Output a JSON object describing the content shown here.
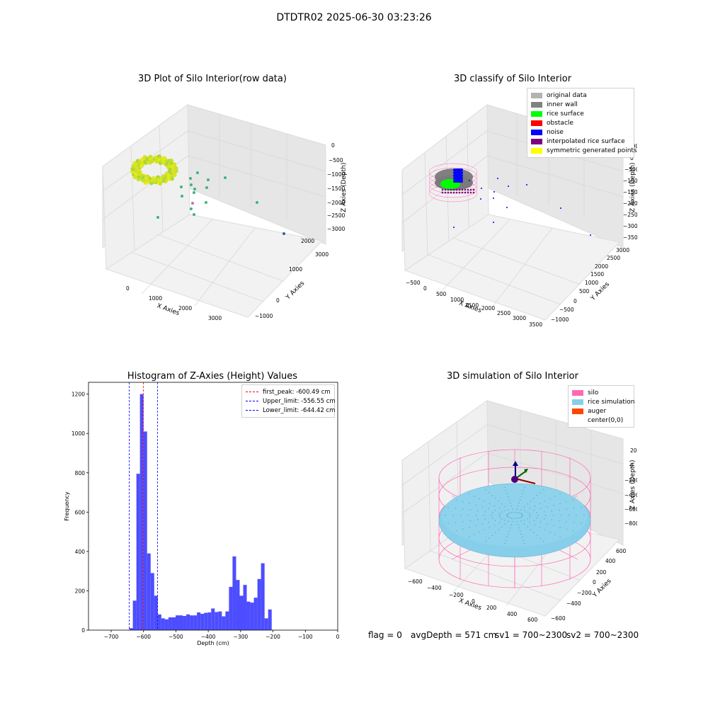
{
  "suptitle": "DTDTR02 2025-06-30 03:23:26",
  "panel_raw": {
    "title": "3D Plot of Silo Interior(row data)",
    "xlabel": "X Axies",
    "ylabel": "Y Axies",
    "zlabel": "Z Axies (Depth)",
    "x_ticks": [
      "0",
      "1000",
      "2000",
      "3000"
    ],
    "y_ticks": [
      "−1000",
      "0",
      "1000",
      "2000",
      "3000"
    ],
    "z_ticks": [
      "0",
      "−500",
      "−1000",
      "−1500",
      "−2000",
      "−2500",
      "−3000"
    ]
  },
  "panel_classify": {
    "title": "3D classify of Silo Interior",
    "xlabel": "X Axies",
    "ylabel": "Y Axies",
    "zlabel": "Z Axies (Depth)",
    "x_ticks": [
      "−500",
      "0",
      "500",
      "1000",
      "1500",
      "2000",
      "2500",
      "3000",
      "3500"
    ],
    "y_ticks": [
      "−1000",
      "−500",
      "0",
      "500",
      "1000",
      "1500",
      "2000",
      "2500",
      "3000"
    ],
    "z_ticks": [
      "500",
      "0",
      "−500",
      "−1000",
      "−1500",
      "−2000",
      "−2500",
      "−3000",
      "−3500"
    ],
    "legend": [
      {
        "label": "original data",
        "color": "#b3b3b3"
      },
      {
        "label": "inner wall",
        "color": "#808080"
      },
      {
        "label": "rice surface",
        "color": "#00ff00"
      },
      {
        "label": "obstacle",
        "color": "#ff0000"
      },
      {
        "label": "noise",
        "color": "#0000ff"
      },
      {
        "label": "interpolated rice surface",
        "color": "#800080"
      },
      {
        "label": "symmetric generated points",
        "color": "#ffff00"
      }
    ]
  },
  "panel_sim": {
    "title": "3D simulation of Silo Interior",
    "xlabel": "X Axies",
    "ylabel": "Y Axies",
    "zlabel": "Z Axies (Depth)",
    "x_ticks": [
      "−600",
      "−400",
      "−200",
      "0",
      "200",
      "400",
      "600"
    ],
    "y_ticks": [
      "−600",
      "−400",
      "−200",
      "0",
      "200",
      "400",
      "600"
    ],
    "z_ticks": [
      "200",
      "0",
      "−200",
      "−400",
      "−600",
      "−800"
    ],
    "legend": [
      {
        "label": "silo",
        "color": "#ff69b4"
      },
      {
        "label": "rice simulation",
        "color": "#87ceeb"
      },
      {
        "label": "auger",
        "color": "#ff4500"
      },
      {
        "label": "center(0,0)",
        "color": ""
      }
    ]
  },
  "status": {
    "flag": "flag = 0",
    "avg_depth": "avgDepth = 571 cm",
    "sv1": "sv1 = 700~2300",
    "sv2": "sv2 = 700~2300"
  },
  "colors": {
    "histogram_bar": "#4d4dff",
    "first_peak_line": "#ff0000",
    "limit_lines": "#0000ff",
    "silo": "#ff69b4",
    "rice": "#87ceeb"
  },
  "chart_data": [
    {
      "type": "scatter",
      "title": "3D Plot of Silo Interior(row data)",
      "xlabel": "X Axies",
      "ylabel": "Y Axies",
      "zlabel": "Z Axies (Depth)"
    },
    {
      "type": "scatter",
      "title": "3D classify of Silo Interior",
      "xlabel": "X Axies",
      "ylabel": "Y Axies",
      "zlabel": "Z Axies (Depth)",
      "legend": [
        "original data",
        "inner wall",
        "rice surface",
        "obstacle",
        "noise",
        "interpolated rice surface",
        "symmetric generated points"
      ]
    },
    {
      "type": "bar",
      "title": "Histogram of Z-Axies (Height) Values",
      "xlabel": "Depth (cm)",
      "ylabel": "Frequency",
      "xlim": [
        -770,
        0
      ],
      "ylim": [
        0,
        1260
      ],
      "x_ticks": [
        "−700",
        "−600",
        "−500",
        "−400",
        "−300",
        "−200",
        "−100",
        "0"
      ],
      "y_ticks": [
        "0",
        "200",
        "400",
        "600",
        "800",
        "1000",
        "1200"
      ],
      "bin_width": 11,
      "bins": [
        {
          "x": -644,
          "value": 10
        },
        {
          "x": -633,
          "value": 150
        },
        {
          "x": -622,
          "value": 795
        },
        {
          "x": -611,
          "value": 1200
        },
        {
          "x": -600,
          "value": 1010
        },
        {
          "x": -589,
          "value": 390
        },
        {
          "x": -578,
          "value": 290
        },
        {
          "x": -567,
          "value": 175
        },
        {
          "x": -556,
          "value": 80
        },
        {
          "x": -545,
          "value": 60
        },
        {
          "x": -534,
          "value": 55
        },
        {
          "x": -523,
          "value": 65
        },
        {
          "x": -512,
          "value": 65
        },
        {
          "x": -501,
          "value": 75
        },
        {
          "x": -490,
          "value": 75
        },
        {
          "x": -479,
          "value": 72
        },
        {
          "x": -468,
          "value": 80
        },
        {
          "x": -457,
          "value": 75
        },
        {
          "x": -446,
          "value": 75
        },
        {
          "x": -435,
          "value": 90
        },
        {
          "x": -424,
          "value": 83
        },
        {
          "x": -413,
          "value": 88
        },
        {
          "x": -402,
          "value": 90
        },
        {
          "x": -391,
          "value": 110
        },
        {
          "x": -380,
          "value": 92
        },
        {
          "x": -369,
          "value": 95
        },
        {
          "x": -358,
          "value": 70
        },
        {
          "x": -347,
          "value": 95
        },
        {
          "x": -336,
          "value": 220
        },
        {
          "x": -325,
          "value": 375
        },
        {
          "x": -314,
          "value": 255
        },
        {
          "x": -303,
          "value": 175
        },
        {
          "x": -292,
          "value": 230
        },
        {
          "x": -281,
          "value": 145
        },
        {
          "x": -270,
          "value": 140
        },
        {
          "x": -259,
          "value": 165
        },
        {
          "x": -248,
          "value": 260
        },
        {
          "x": -237,
          "value": 340
        },
        {
          "x": -226,
          "value": 60
        },
        {
          "x": -215,
          "value": 105
        }
      ],
      "vlines": [
        {
          "x": -600.49,
          "label": "first_peak: -600.49 cm",
          "color": "#ff0000"
        },
        {
          "x": -556.55,
          "label": "Upper_limit: -556.55 cm",
          "color": "#0000ff"
        },
        {
          "x": -644.42,
          "label": "Lower_limit: -644.42 cm",
          "color": "#0000ff"
        }
      ],
      "legend_placement": "top-right"
    },
    {
      "type": "scatter",
      "title": "3D simulation of Silo Interior",
      "xlabel": "X Axies",
      "ylabel": "Y Axies",
      "zlabel": "Z Axies (Depth)",
      "legend": [
        "silo",
        "rice simulation",
        "auger",
        "center(0,0)"
      ]
    }
  ]
}
